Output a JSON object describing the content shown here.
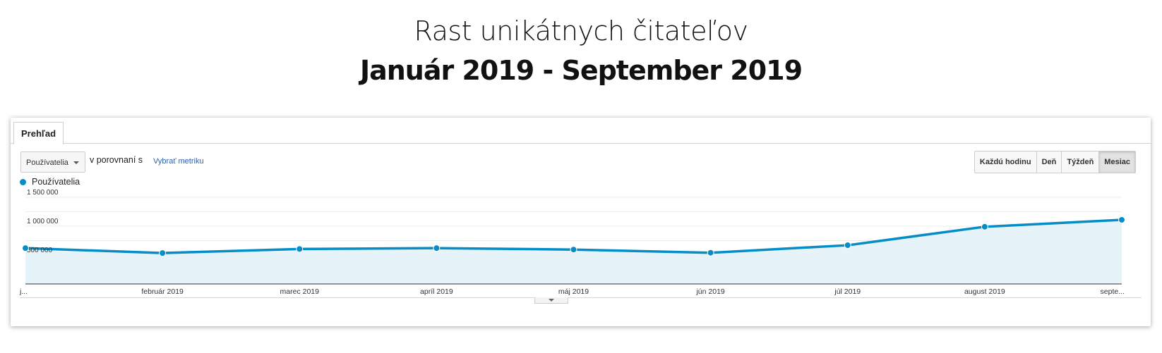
{
  "title": {
    "line1": "Rast unikátnych čitateľov",
    "line2": "Január 2019 - September 2019"
  },
  "tabs": {
    "overview": "Prehľad"
  },
  "controls": {
    "metric_select": "Používatelia",
    "compare_text": "v porovnaní s",
    "pick_metric": "Vybrať metriku",
    "granularity": [
      "Každú hodinu",
      "Deň",
      "Týždeň",
      "Mesiac"
    ],
    "active_granularity": "Mesiac"
  },
  "colors": {
    "series": "#058dc7",
    "area": "#e6f3f9"
  },
  "chart_data": {
    "type": "area",
    "x_labels": [
      "j...",
      "február 2019",
      "marec 2019",
      "apríl 2019",
      "máj 2019",
      "jún 2019",
      "júl 2019",
      "august 2019",
      "septe..."
    ],
    "categories": [
      "január 2019",
      "február 2019",
      "marec 2019",
      "apríl 2019",
      "máj 2019",
      "jún 2019",
      "júl 2019",
      "august 2019",
      "september 2019"
    ],
    "series": [
      {
        "name": "Používatelia",
        "values": [
          620000,
          535000,
          605000,
          620000,
          595000,
          540000,
          670000,
          990000,
          1110000
        ]
      }
    ],
    "y_ticks": [
      "1 500 000",
      "1 000 000",
      "500 000"
    ],
    "y_tick_values": [
      1500000,
      1000000,
      500000
    ],
    "ylim": [
      0,
      1500000
    ],
    "grid": true,
    "legend": "top-left"
  }
}
